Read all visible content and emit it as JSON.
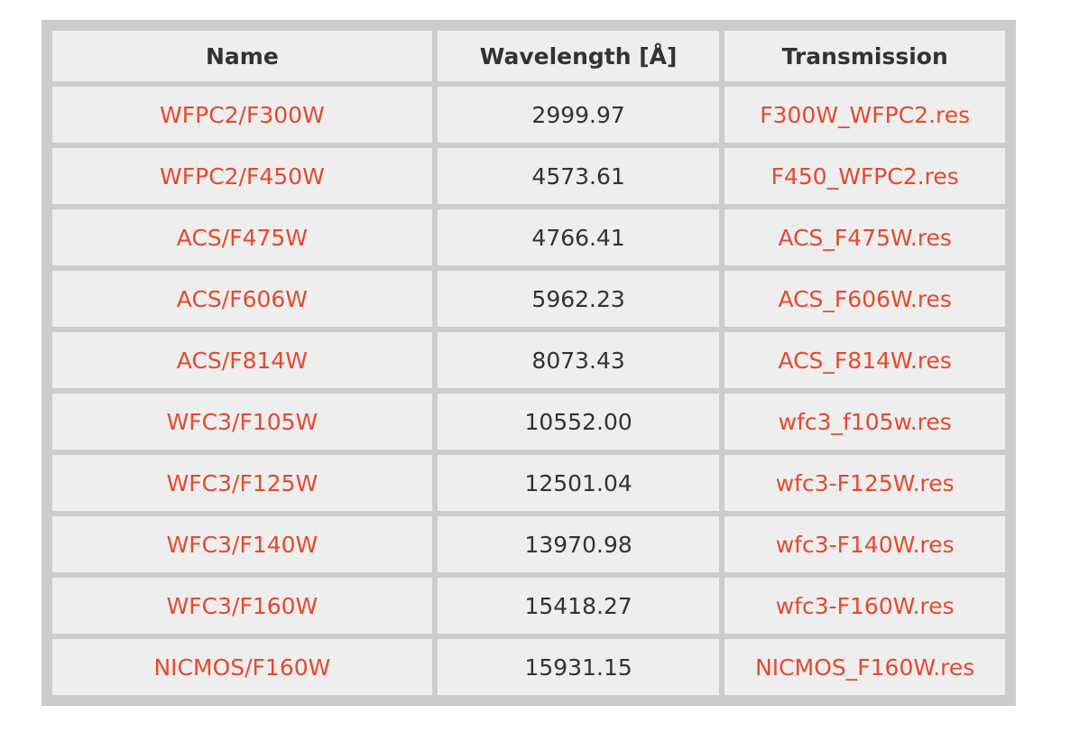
{
  "table": {
    "headers": {
      "name": "Name",
      "wavelength": "Wavelength [Å]",
      "transmission": "Transmission"
    },
    "rows": [
      {
        "name": "WFPC2/F300W",
        "wavelength": "2999.97",
        "transmission": "F300W_WFPC2.res"
      },
      {
        "name": "WFPC2/F450W",
        "wavelength": "4573.61",
        "transmission": "F450_WFPC2.res"
      },
      {
        "name": "ACS/F475W",
        "wavelength": "4766.41",
        "transmission": "ACS_F475W.res"
      },
      {
        "name": "ACS/F606W",
        "wavelength": "5962.23",
        "transmission": "ACS_F606W.res"
      },
      {
        "name": "ACS/F814W",
        "wavelength": "8073.43",
        "transmission": "ACS_F814W.res"
      },
      {
        "name": "WFC3/F105W",
        "wavelength": "10552.00",
        "transmission": "wfc3_f105w.res"
      },
      {
        "name": "WFC3/F125W",
        "wavelength": "12501.04",
        "transmission": "wfc3-F125W.res"
      },
      {
        "name": "WFC3/F140W",
        "wavelength": "13970.98",
        "transmission": "wfc3-F140W.res"
      },
      {
        "name": "WFC3/F160W",
        "wavelength": "15418.27",
        "transmission": "wfc3-F160W.res"
      },
      {
        "name": "NICMOS/F160W",
        "wavelength": "15931.15",
        "transmission": "NICMOS_F160W.res"
      }
    ]
  },
  "colors": {
    "link": "#e44a2e",
    "text": "#333333",
    "cell_bg": "#eeeeee",
    "grid": "#cccccc"
  }
}
